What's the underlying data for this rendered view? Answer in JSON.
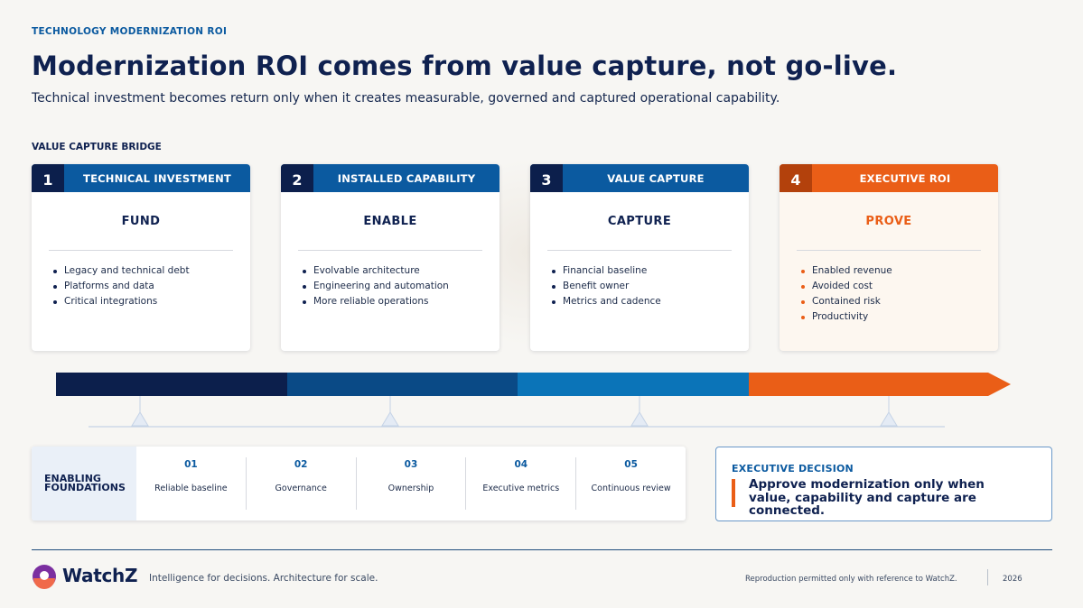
{
  "header": {
    "eyebrow": "TECHNOLOGY MODERNIZATION ROI",
    "title": "Modernization ROI comes from value capture, not go-live.",
    "subtitle": "Technical investment becomes return only when it creates measurable, governed and captured operational capability."
  },
  "bridge": {
    "label": "VALUE CAPTURE BRIDGE",
    "stages": [
      {
        "number": "1",
        "title": "TECHNICAL INVESTMENT",
        "verb": "FUND",
        "items": [
          "Legacy and technical debt",
          "Platforms and data",
          "Critical integrations"
        ]
      },
      {
        "number": "2",
        "title": "INSTALLED CAPABILITY",
        "verb": "ENABLE",
        "items": [
          "Evolvable architecture",
          "Engineering and automation",
          "More reliable operations"
        ]
      },
      {
        "number": "3",
        "title": "VALUE CAPTURE",
        "verb": "CAPTURE",
        "items": [
          "Financial baseline",
          "Benefit owner",
          "Metrics and cadence"
        ]
      },
      {
        "number": "4",
        "title": "EXECUTIVE ROI",
        "verb": "PROVE",
        "items": [
          "Enabled revenue",
          "Avoided cost",
          "Contained risk",
          "Productivity"
        ]
      }
    ],
    "bar_colors": [
      "#0c1f4c",
      "#0a4a86",
      "#0b74b8",
      "#ea5e17"
    ]
  },
  "foundations": {
    "label": "ENABLING FOUNDATIONS",
    "items": [
      {
        "number": "01",
        "text": "Reliable baseline"
      },
      {
        "number": "02",
        "text": "Governance"
      },
      {
        "number": "03",
        "text": "Ownership"
      },
      {
        "number": "04",
        "text": "Executive metrics"
      },
      {
        "number": "05",
        "text": "Continuous review"
      }
    ]
  },
  "decision": {
    "label": "EXECUTIVE DECISION",
    "text": "Approve modernization only when value, capability and capture are connected."
  },
  "footer": {
    "brand": "WatchZ",
    "tagline": "Intelligence for decisions. Architecture for scale.",
    "reproduction": "Reproduction permitted only with reference to WatchZ.",
    "year": "2026"
  },
  "colors": {
    "navy": "#0c1f4c",
    "blue": "#0b5aa0",
    "orange": "#ea5e17"
  }
}
